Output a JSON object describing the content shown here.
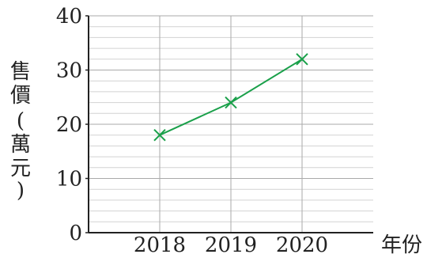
{
  "chart_data": {
    "type": "line",
    "x": [
      "2018",
      "2019",
      "2020"
    ],
    "series": [
      {
        "values": [
          18,
          24,
          32
        ],
        "color": "#1aa04a",
        "marker": "x"
      }
    ],
    "xlabel": "年份",
    "ylabel": [
      "售",
      "價",
      "(",
      "萬",
      "元",
      ")"
    ],
    "ylim": [
      0,
      40
    ],
    "yticks": [
      0,
      10,
      20,
      30,
      40
    ],
    "minor_step": 2,
    "grid": true,
    "axis_color": "#222222",
    "grid_color": "#aaaaaa",
    "minor_grid_color": "#d2d2d2"
  }
}
